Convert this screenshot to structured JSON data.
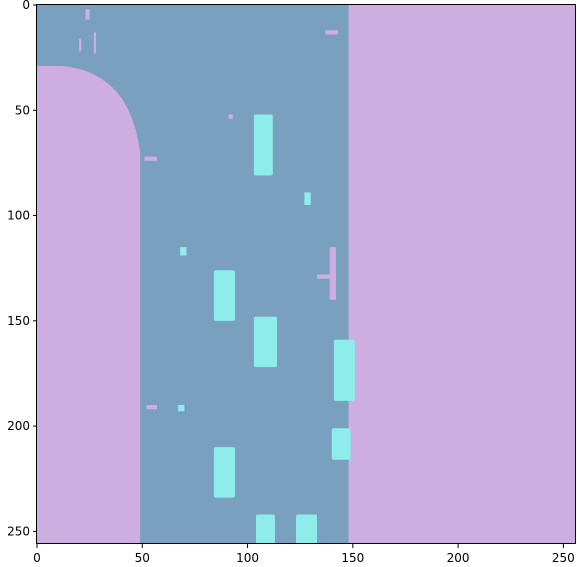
{
  "chart_data": {
    "type": "heatmap",
    "image_size": [
      256,
      256
    ],
    "classes": [
      {
        "name": "road",
        "color": "#7aa0bf"
      },
      {
        "name": "building",
        "color": "#ceaee0"
      },
      {
        "name": "car",
        "color": "#8eeceb"
      }
    ],
    "x_ticks": [
      "0",
      "50",
      "100",
      "150",
      "200",
      "250"
    ],
    "y_ticks": [
      "0",
      "50",
      "100",
      "150",
      "200",
      "250"
    ],
    "xlim": [
      0,
      256
    ],
    "ylim": [
      256,
      0
    ],
    "title": "",
    "xlabel": "",
    "ylabel": "",
    "grid": false,
    "legend": "none"
  }
}
